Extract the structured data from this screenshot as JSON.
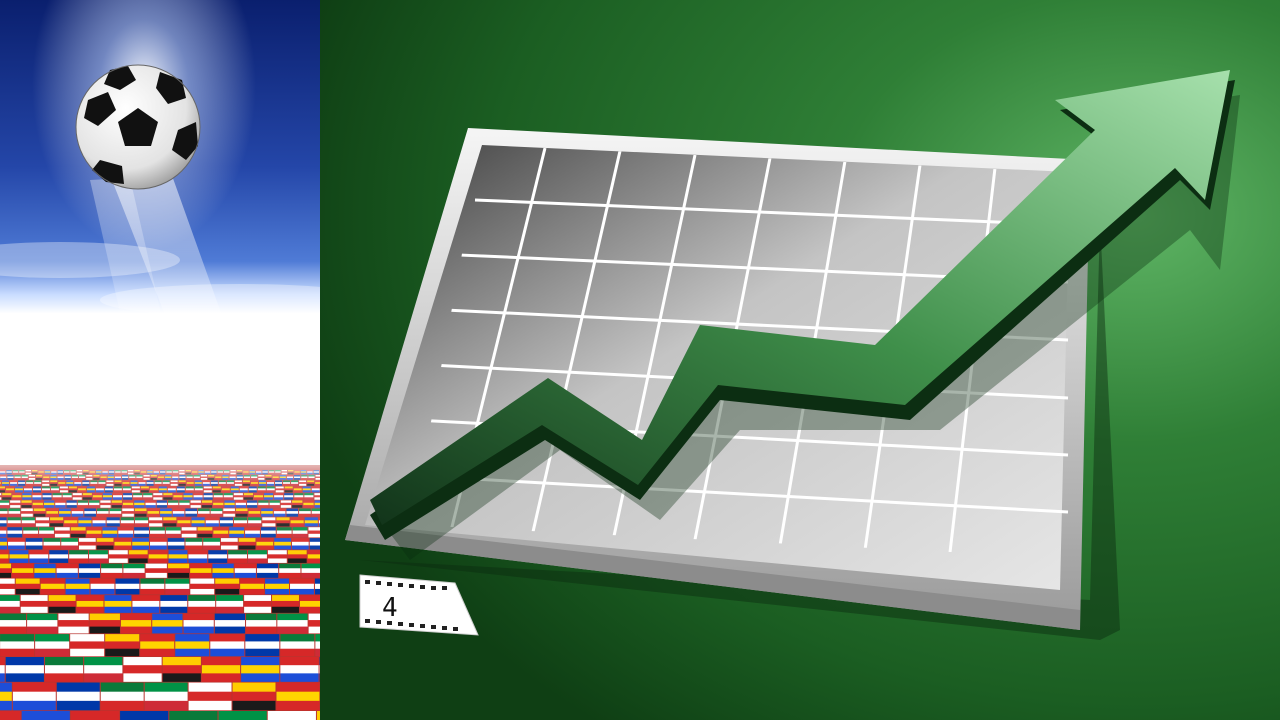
{
  "badge": {
    "number": "4"
  },
  "colors": {
    "sky_top": "#0a1f6e",
    "sky_mid": "#3a63c8",
    "horizon": "#eef4ff",
    "background_green": "#1f6a27",
    "arrow_green": "#3f8f4a",
    "grid_panel": "#c9c9c9"
  },
  "icons": [
    "soccer-ball",
    "flag-floor",
    "trend-arrow",
    "film-strip-badge"
  ]
}
